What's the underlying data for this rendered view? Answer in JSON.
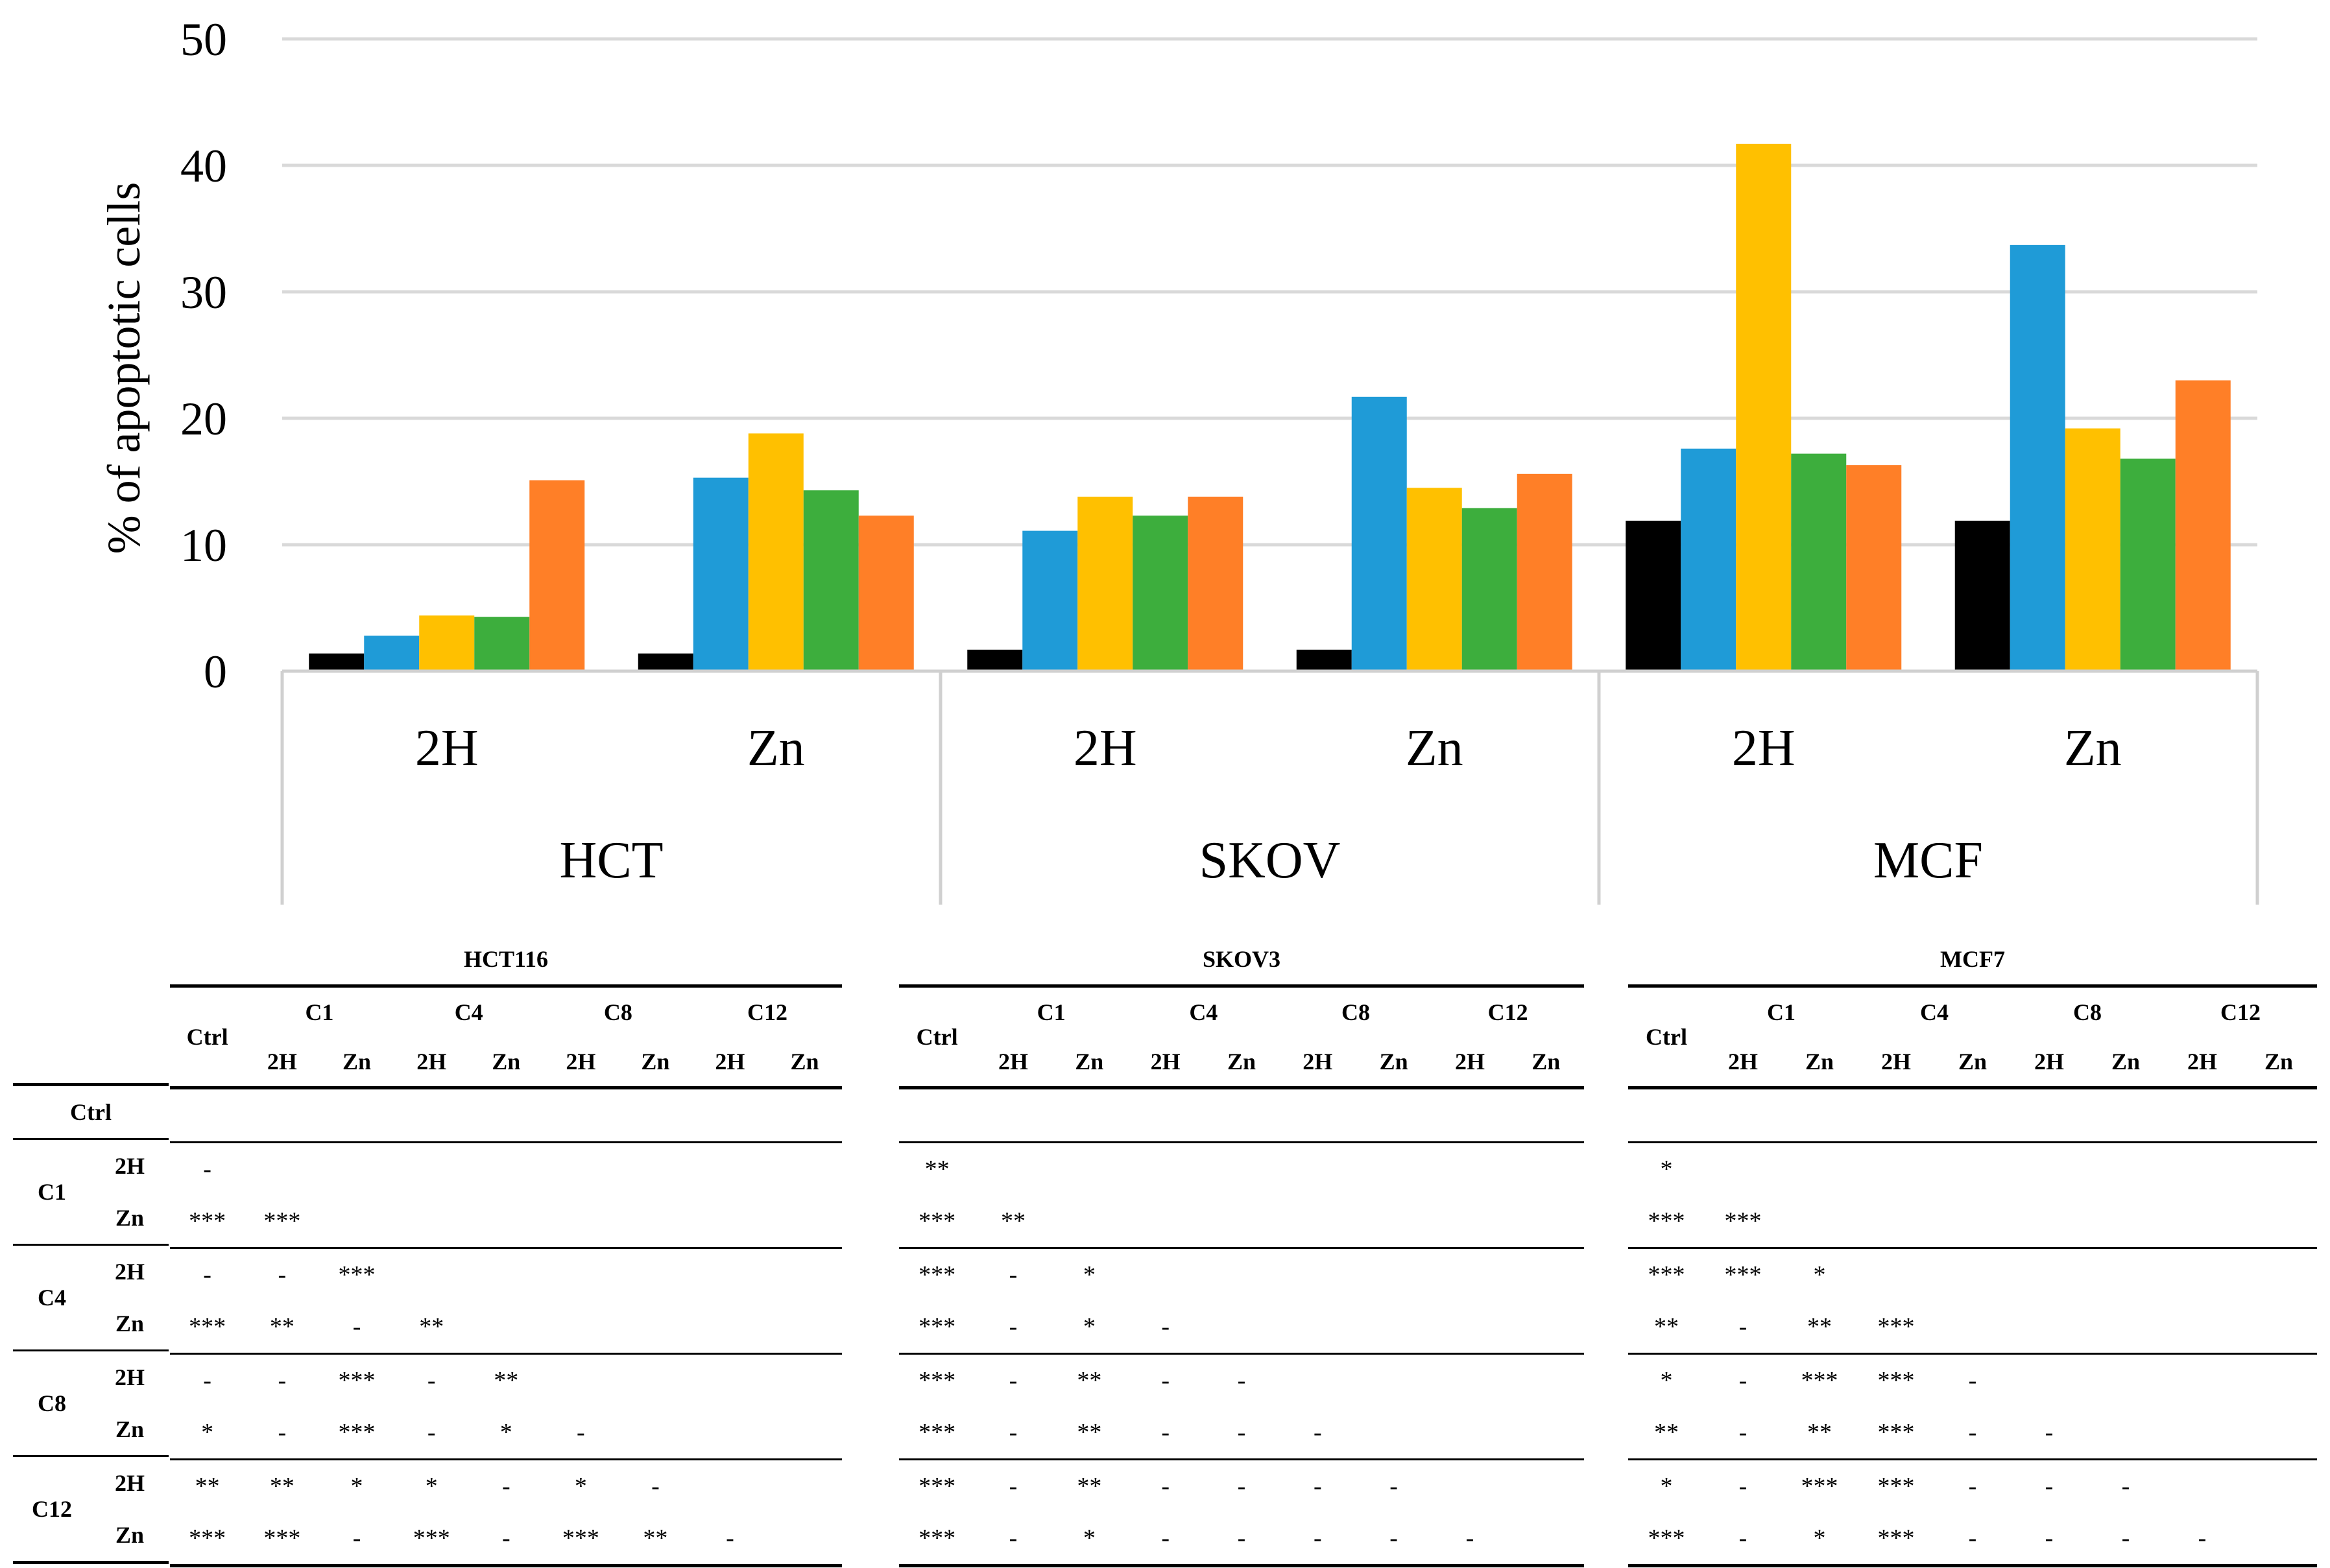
{
  "chart_data": {
    "type": "bar",
    "ylabel": "% of apoptotic cells",
    "ylim": [
      0,
      50
    ],
    "yticks": [
      0,
      10,
      20,
      30,
      40,
      50
    ],
    "grid": true,
    "groups": [
      {
        "name": "HCT",
        "sub": [
          "2H",
          "Zn"
        ]
      },
      {
        "name": "SKOV",
        "sub": [
          "2H",
          "Zn"
        ]
      },
      {
        "name": "MCF",
        "sub": [
          "2H",
          "Zn"
        ]
      }
    ],
    "series": [
      {
        "name": "Ctrl",
        "color": "#000000",
        "values": [
          1.4,
          1.4,
          1.7,
          1.7,
          11.9,
          11.9
        ]
      },
      {
        "name": "C1",
        "color": "#1f9bd7",
        "values": [
          2.8,
          15.3,
          11.1,
          21.7,
          17.6,
          33.7
        ]
      },
      {
        "name": "C4",
        "color": "#ffc000",
        "values": [
          4.4,
          18.8,
          13.8,
          14.5,
          41.7,
          19.2
        ]
      },
      {
        "name": "C8",
        "color": "#3dae3d",
        "values": [
          4.3,
          14.3,
          12.3,
          12.9,
          17.2,
          16.8
        ]
      },
      {
        "name": "C12",
        "color": "#ff7f27",
        "values": [
          15.1,
          12.3,
          13.8,
          15.6,
          16.3,
          23.0
        ]
      }
    ]
  },
  "tables": {
    "row_labels": {
      "ctrl": "Ctrl",
      "groups": [
        {
          "name": "C1",
          "subs": [
            "2H",
            "Zn"
          ]
        },
        {
          "name": "C4",
          "subs": [
            "2H",
            "Zn"
          ]
        },
        {
          "name": "C8",
          "subs": [
            "2H",
            "Zn"
          ]
        },
        {
          "name": "C12",
          "subs": [
            "2H",
            "Zn"
          ]
        }
      ]
    },
    "column_header": {
      "ctrl": "Ctrl",
      "groups": [
        "C1",
        "C4",
        "C8",
        "C12"
      ],
      "subs": [
        "2H",
        "Zn",
        "2H",
        "Zn",
        "2H",
        "Zn",
        "2H",
        "Zn"
      ]
    },
    "panels": [
      {
        "title": "HCT116",
        "rows": [
          [],
          [
            "-"
          ],
          [
            "***",
            "***"
          ],
          [
            "-",
            "-",
            "***"
          ],
          [
            "***",
            "**",
            "-",
            "**"
          ],
          [
            "-",
            "-",
            "***",
            "-",
            "**"
          ],
          [
            "*",
            "-",
            "***",
            "-",
            "*",
            "-"
          ],
          [
            "**",
            "**",
            "*",
            "*",
            "-",
            "*",
            "-"
          ],
          [
            "***",
            "***",
            "-",
            "***",
            "-",
            "***",
            "**",
            "-"
          ]
        ]
      },
      {
        "title": "SKOV3",
        "rows": [
          [],
          [
            "**"
          ],
          [
            "***",
            "**"
          ],
          [
            "***",
            "-",
            "*"
          ],
          [
            "***",
            "-",
            "*",
            "-"
          ],
          [
            "***",
            "-",
            "**",
            "-",
            "-"
          ],
          [
            "***",
            "-",
            "**",
            "-",
            "-",
            "-"
          ],
          [
            "***",
            "-",
            "**",
            "-",
            "-",
            "-",
            "-"
          ],
          [
            "***",
            "-",
            "*",
            "-",
            "-",
            "-",
            "-",
            "-"
          ]
        ]
      },
      {
        "title": "MCF7",
        "rows": [
          [],
          [
            "*"
          ],
          [
            "***",
            "***"
          ],
          [
            "***",
            "***",
            "*"
          ],
          [
            "**",
            "-",
            "**",
            "***"
          ],
          [
            "*",
            "-",
            "***",
            "***",
            "-"
          ],
          [
            "**",
            "-",
            "**",
            "***",
            "-",
            "-"
          ],
          [
            "*",
            "-",
            "***",
            "***",
            "-",
            "-",
            "-"
          ],
          [
            "***",
            "-",
            "*",
            "***",
            "-",
            "-",
            "-",
            "-"
          ]
        ]
      }
    ]
  }
}
